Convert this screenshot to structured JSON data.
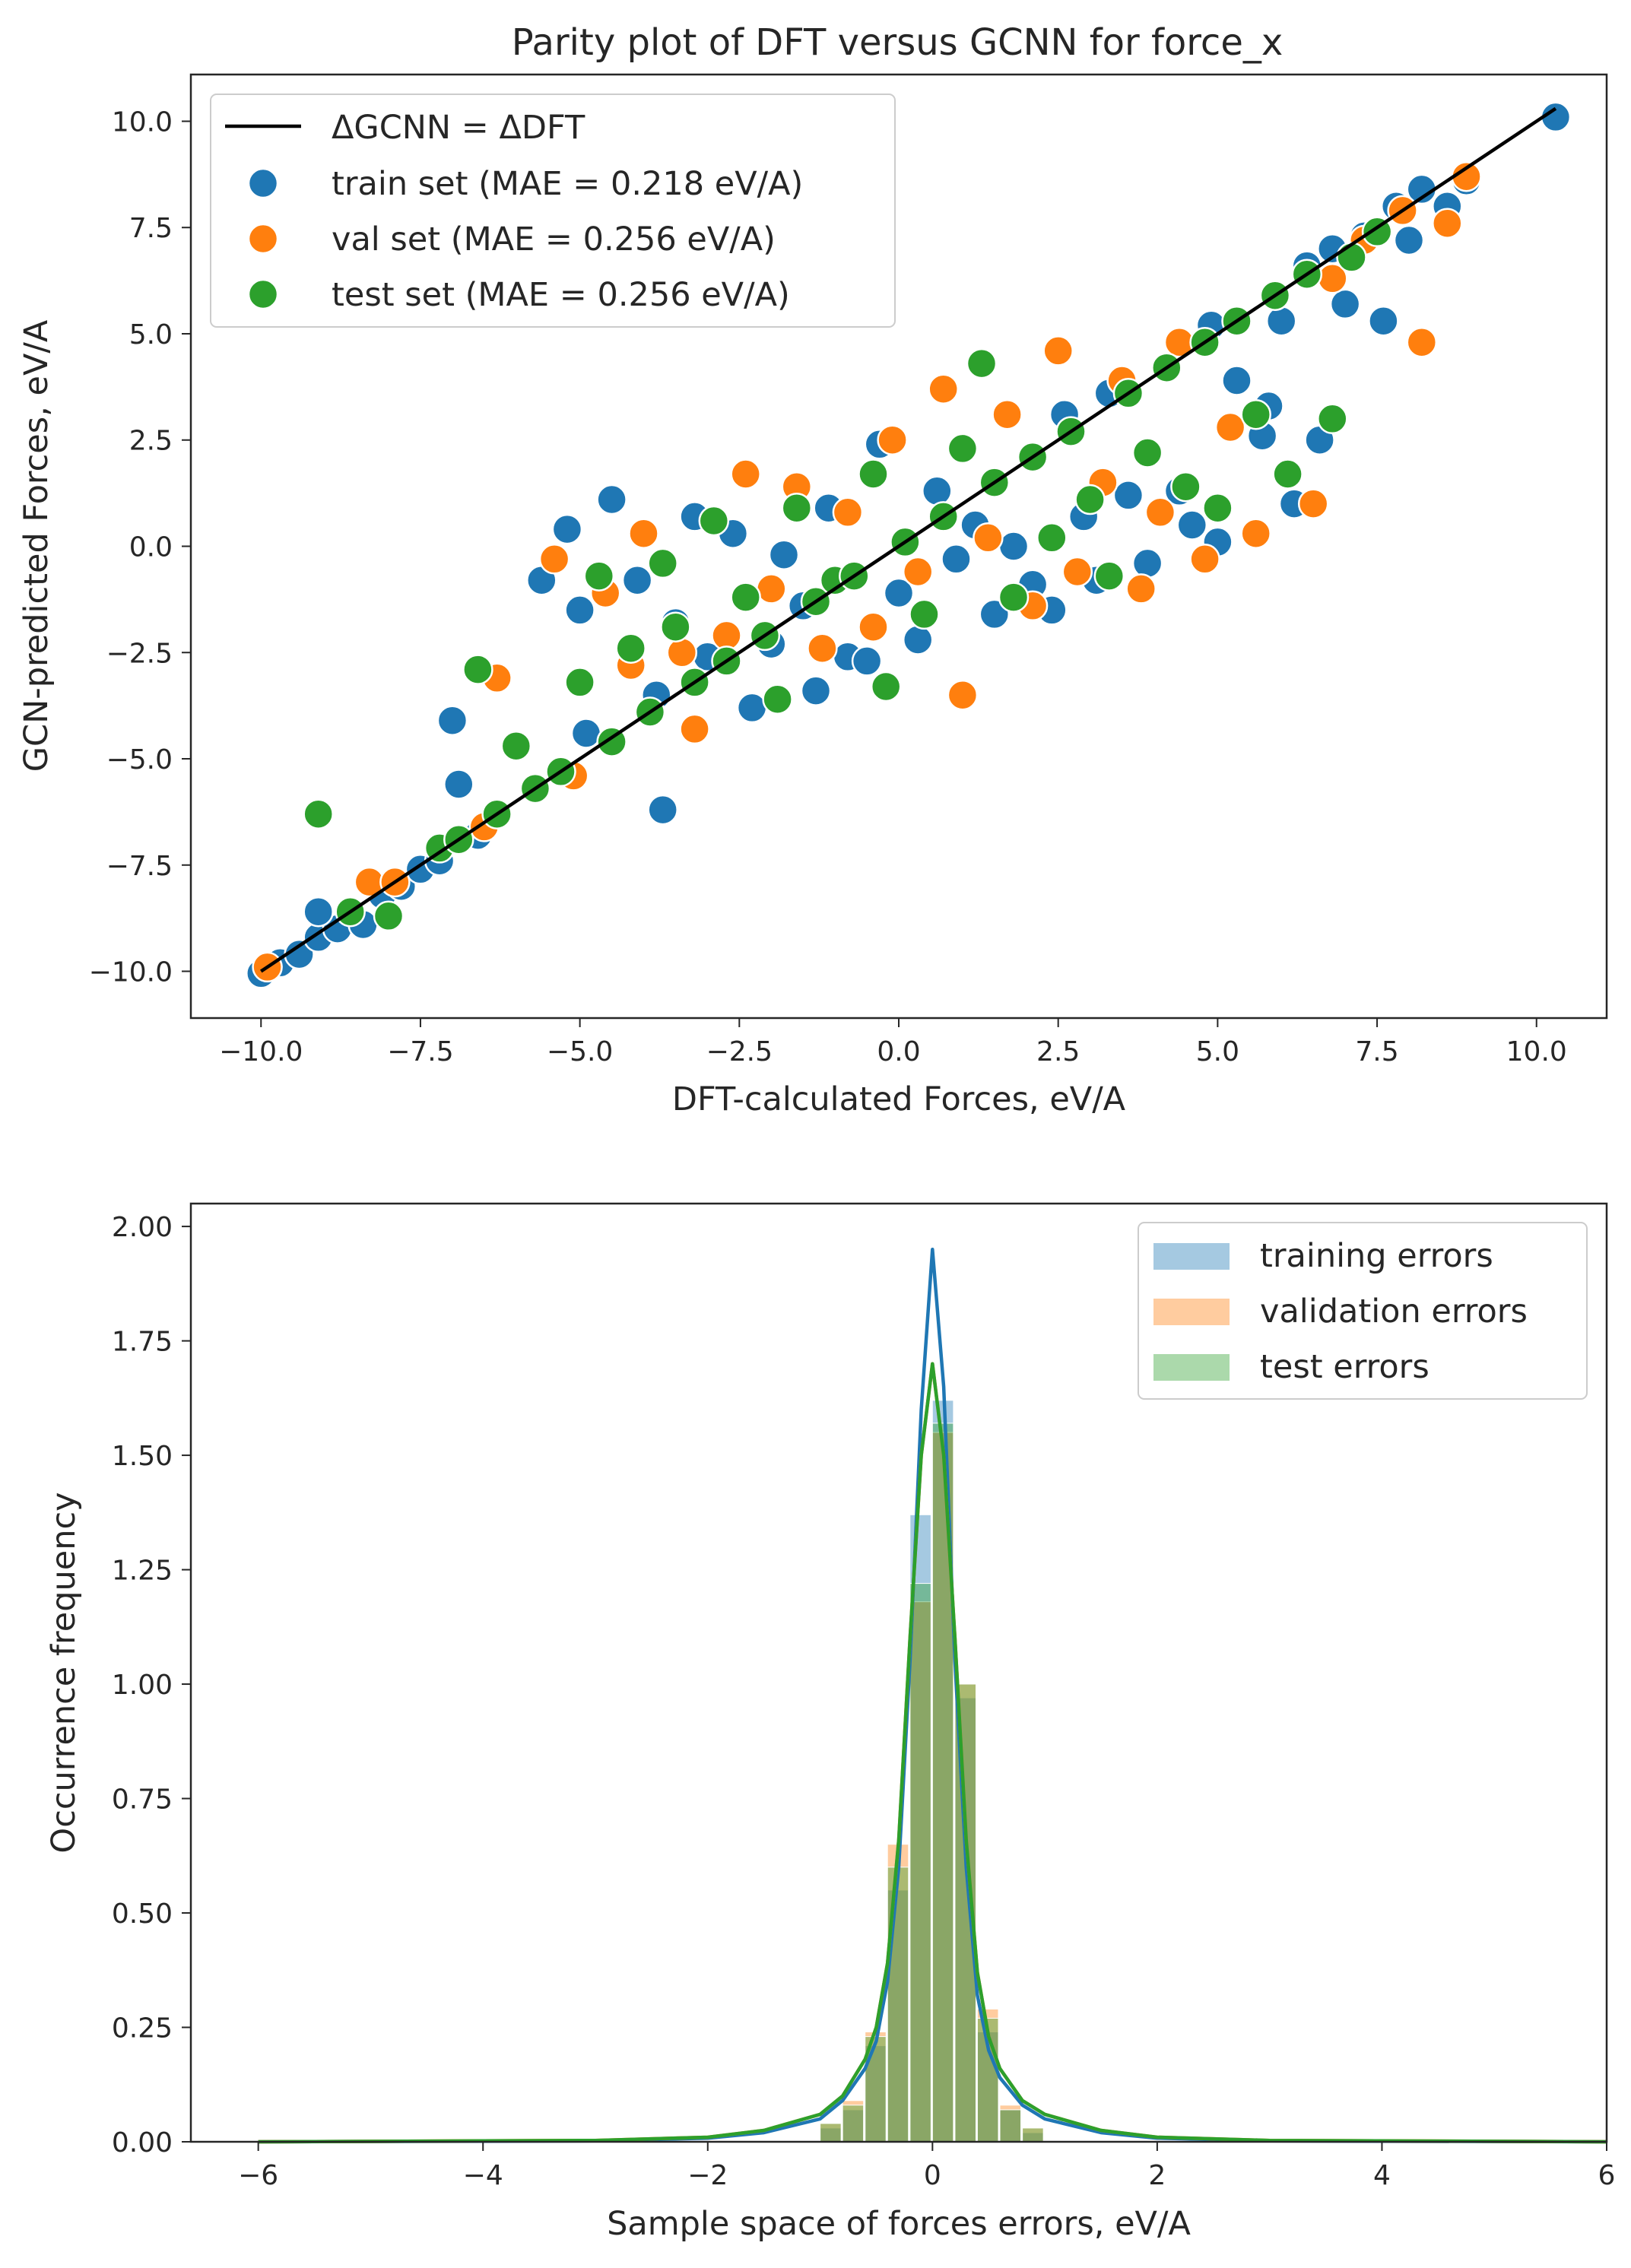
{
  "chart_data": [
    {
      "type": "scatter",
      "title": "Parity plot of DFT versus GCNN for force_x",
      "xlabel": "DFT-calculated Forces, eV/A",
      "ylabel": "GCN-predicted Forces, eV/A",
      "xlim": [
        -11.1,
        11.1
      ],
      "ylim": [
        -11.1,
        11.1
      ],
      "xticks": [
        "−10.0",
        "−7.5",
        "−5.0",
        "−2.5",
        "0.0",
        "2.5",
        "5.0",
        "7.5",
        "10.0"
      ],
      "yticks": [
        "−10.0",
        "−7.5",
        "−5.0",
        "−2.5",
        "0.0",
        "2.5",
        "5.0",
        "7.5",
        "10.0"
      ],
      "xtick_values": [
        -10,
        -7.5,
        -5,
        -2.5,
        0,
        2.5,
        5,
        7.5,
        10
      ],
      "ytick_values": [
        -10,
        -7.5,
        -5,
        -2.5,
        0,
        2.5,
        5,
        7.5,
        10
      ],
      "grid": false,
      "legend_position": "upper-left",
      "reference_line": {
        "name": "ΔGCNN = ΔDFT",
        "color": "#000000",
        "x": [
          -10,
          10.3
        ],
        "y": [
          -10,
          10.3
        ]
      },
      "series": [
        {
          "name": "train set (MAE = 0.218 eV/A)",
          "color": "#1f77b4",
          "points": [
            [
              -10,
              -10.05
            ],
            [
              -9.7,
              -9.8
            ],
            [
              -9.4,
              -9.6
            ],
            [
              -9.1,
              -9.2
            ],
            [
              -8.8,
              -9.0
            ],
            [
              -9.1,
              -8.6
            ],
            [
              -8.4,
              -8.9
            ],
            [
              -8.1,
              -8.2
            ],
            [
              -7.8,
              -8.0
            ],
            [
              -7.5,
              -7.6
            ],
            [
              -7.2,
              -7.4
            ],
            [
              -7.0,
              -4.1
            ],
            [
              -6.9,
              -5.6
            ],
            [
              -6.6,
              -6.8
            ],
            [
              -5.6,
              -0.8
            ],
            [
              -5.2,
              0.4
            ],
            [
              -5.0,
              -1.5
            ],
            [
              -4.9,
              -4.4
            ],
            [
              -4.5,
              1.1
            ],
            [
              -4.1,
              -0.8
            ],
            [
              -3.7,
              -6.2
            ],
            [
              -3.8,
              -3.5
            ],
            [
              -3.5,
              -1.8
            ],
            [
              -3.2,
              0.7
            ],
            [
              -3.0,
              -2.6
            ],
            [
              -2.6,
              0.3
            ],
            [
              -2.3,
              -3.8
            ],
            [
              -2.0,
              -2.3
            ],
            [
              -1.8,
              -0.2
            ],
            [
              -1.5,
              -1.4
            ],
            [
              -1.3,
              -3.4
            ],
            [
              -1.1,
              0.9
            ],
            [
              -0.8,
              -2.6
            ],
            [
              -0.5,
              -2.7
            ],
            [
              -0.3,
              2.4
            ],
            [
              0.0,
              -1.1
            ],
            [
              0.3,
              -2.2
            ],
            [
              0.6,
              1.3
            ],
            [
              0.9,
              -0.3
            ],
            [
              1.2,
              0.5
            ],
            [
              1.5,
              -1.6
            ],
            [
              1.8,
              0.0
            ],
            [
              2.1,
              -0.9
            ],
            [
              2.4,
              -1.5
            ],
            [
              2.6,
              3.1
            ],
            [
              2.9,
              0.7
            ],
            [
              3.1,
              -0.8
            ],
            [
              3.3,
              3.6
            ],
            [
              3.6,
              1.2
            ],
            [
              3.9,
              -0.4
            ],
            [
              4.2,
              4.2
            ],
            [
              4.4,
              1.3
            ],
            [
              4.6,
              0.5
            ],
            [
              4.9,
              5.2
            ],
            [
              5.0,
              0.1
            ],
            [
              5.3,
              3.9
            ],
            [
              5.7,
              2.6
            ],
            [
              5.8,
              3.3
            ],
            [
              6.0,
              5.3
            ],
            [
              6.2,
              1.0
            ],
            [
              6.4,
              6.6
            ],
            [
              6.6,
              2.5
            ],
            [
              6.8,
              7.0
            ],
            [
              7.0,
              5.7
            ],
            [
              7.3,
              7.3
            ],
            [
              7.6,
              5.3
            ],
            [
              7.8,
              8.0
            ],
            [
              8.0,
              7.2
            ],
            [
              8.2,
              8.4
            ],
            [
              8.6,
              8.0
            ],
            [
              8.9,
              8.6
            ],
            [
              10.3,
              10.1
            ]
          ]
        },
        {
          "name": "val set (MAE = 0.256 eV/A)",
          "color": "#ff7f0e",
          "points": [
            [
              -9.9,
              -9.9
            ],
            [
              -8.3,
              -7.9
            ],
            [
              -7.9,
              -7.9
            ],
            [
              -6.5,
              -6.6
            ],
            [
              -6.3,
              -3.1
            ],
            [
              -5.4,
              -0.3
            ],
            [
              -5.1,
              -5.4
            ],
            [
              -4.6,
              -1.1
            ],
            [
              -4.2,
              -2.8
            ],
            [
              -4.0,
              0.3
            ],
            [
              -3.4,
              -2.5
            ],
            [
              -3.2,
              -4.3
            ],
            [
              -2.7,
              -2.1
            ],
            [
              -2.4,
              1.7
            ],
            [
              -2.0,
              -1.0
            ],
            [
              -1.6,
              1.4
            ],
            [
              -1.2,
              -2.4
            ],
            [
              -0.8,
              0.8
            ],
            [
              -0.4,
              -1.9
            ],
            [
              -0.1,
              2.5
            ],
            [
              0.3,
              -0.6
            ],
            [
              0.7,
              3.7
            ],
            [
              1.0,
              -3.5
            ],
            [
              1.4,
              0.2
            ],
            [
              1.7,
              3.1
            ],
            [
              2.1,
              -1.4
            ],
            [
              2.5,
              4.6
            ],
            [
              2.8,
              -0.6
            ],
            [
              3.2,
              1.5
            ],
            [
              3.5,
              3.9
            ],
            [
              3.8,
              -1.0
            ],
            [
              4.1,
              0.8
            ],
            [
              4.4,
              4.8
            ],
            [
              4.8,
              -0.3
            ],
            [
              5.2,
              2.8
            ],
            [
              5.6,
              0.3
            ],
            [
              5.9,
              5.9
            ],
            [
              6.5,
              1.0
            ],
            [
              6.8,
              6.3
            ],
            [
              7.3,
              7.2
            ],
            [
              7.9,
              7.9
            ],
            [
              8.2,
              4.8
            ],
            [
              8.6,
              7.6
            ],
            [
              8.9,
              8.7
            ]
          ]
        },
        {
          "name": "test set (MAE = 0.256 eV/A)",
          "color": "#2ca02c",
          "points": [
            [
              -9.1,
              -6.3
            ],
            [
              -8.6,
              -8.6
            ],
            [
              -8.0,
              -8.7
            ],
            [
              -7.2,
              -7.1
            ],
            [
              -6.9,
              -6.9
            ],
            [
              -6.6,
              -2.9
            ],
            [
              -6.3,
              -6.3
            ],
            [
              -6.0,
              -4.7
            ],
            [
              -5.7,
              -5.7
            ],
            [
              -5.3,
              -5.3
            ],
            [
              -5.0,
              -3.2
            ],
            [
              -4.7,
              -0.7
            ],
            [
              -4.5,
              -4.6
            ],
            [
              -4.2,
              -2.4
            ],
            [
              -3.9,
              -3.9
            ],
            [
              -3.7,
              -0.4
            ],
            [
              -3.5,
              -1.9
            ],
            [
              -3.2,
              -3.2
            ],
            [
              -2.9,
              0.6
            ],
            [
              -2.7,
              -2.7
            ],
            [
              -2.4,
              -1.2
            ],
            [
              -2.1,
              -2.1
            ],
            [
              -1.9,
              -3.6
            ],
            [
              -1.6,
              0.9
            ],
            [
              -1.3,
              -1.3
            ],
            [
              -1.0,
              -0.8
            ],
            [
              -0.7,
              -0.7
            ],
            [
              -0.4,
              1.7
            ],
            [
              -0.2,
              -3.3
            ],
            [
              0.1,
              0.1
            ],
            [
              0.4,
              -1.6
            ],
            [
              0.7,
              0.7
            ],
            [
              1.0,
              2.3
            ],
            [
              1.3,
              4.3
            ],
            [
              1.5,
              1.5
            ],
            [
              1.8,
              -1.2
            ],
            [
              2.1,
              2.1
            ],
            [
              2.4,
              0.2
            ],
            [
              2.7,
              2.7
            ],
            [
              3.0,
              1.1
            ],
            [
              3.3,
              -0.7
            ],
            [
              3.6,
              3.6
            ],
            [
              3.9,
              2.2
            ],
            [
              4.2,
              4.2
            ],
            [
              4.5,
              1.4
            ],
            [
              4.8,
              4.8
            ],
            [
              5.0,
              0.9
            ],
            [
              5.3,
              5.3
            ],
            [
              5.6,
              3.1
            ],
            [
              5.9,
              5.9
            ],
            [
              6.1,
              1.7
            ],
            [
              6.4,
              6.4
            ],
            [
              6.8,
              3.0
            ],
            [
              7.1,
              6.8
            ],
            [
              7.5,
              7.4
            ]
          ]
        }
      ]
    },
    {
      "type": "histogram",
      "title": "",
      "xlabel": "Sample space of forces errors, eV/A",
      "ylabel": "Occurrence frequency",
      "xlim": [
        -6.6,
        6.0
      ],
      "ylim": [
        0.0,
        2.05
      ],
      "xticks": [
        "−6",
        "−4",
        "−2",
        "0",
        "2",
        "4",
        "6"
      ],
      "yticks": [
        "0.00",
        "0.25",
        "0.50",
        "0.75",
        "1.00",
        "1.25",
        "1.50",
        "1.75",
        "2.00"
      ],
      "xtick_values": [
        -6,
        -4,
        -2,
        0,
        2,
        4,
        6
      ],
      "ytick_values": [
        0,
        0.25,
        0.5,
        0.75,
        1.0,
        1.25,
        1.5,
        1.75,
        2.0
      ],
      "grid": false,
      "legend_position": "upper-right",
      "series": [
        {
          "name": "training errors",
          "color": "#1f77b4",
          "bin_edges": [
            -1.0,
            -0.8,
            -0.6,
            -0.4,
            -0.2,
            0.0,
            0.2,
            0.4,
            0.6,
            0.8,
            1.0
          ],
          "density": [
            0.03,
            0.07,
            0.21,
            0.55,
            1.37,
            1.62,
            0.97,
            0.24,
            0.07,
            0.02
          ],
          "kde": {
            "x": [
              -6,
              -3,
              -2,
              -1.5,
              -1.0,
              -0.8,
              -0.6,
              -0.5,
              -0.4,
              -0.3,
              -0.2,
              -0.1,
              0.0,
              0.1,
              0.2,
              0.3,
              0.4,
              0.5,
              0.6,
              0.8,
              1.0,
              1.5,
              2,
              3,
              6
            ],
            "y": [
              0,
              0.002,
              0.008,
              0.02,
              0.05,
              0.09,
              0.16,
              0.22,
              0.35,
              0.6,
              1.05,
              1.6,
              1.95,
              1.65,
              1.05,
              0.6,
              0.32,
              0.2,
              0.14,
              0.08,
              0.05,
              0.02,
              0.008,
              0.002,
              0
            ]
          }
        },
        {
          "name": "validation errors",
          "color": "#ff7f0e",
          "bin_edges": [
            -1.0,
            -0.8,
            -0.6,
            -0.4,
            -0.2,
            0.0,
            0.2,
            0.4,
            0.6,
            0.8,
            1.0
          ],
          "density": [
            0.04,
            0.09,
            0.24,
            0.65,
            1.18,
            1.55,
            1.0,
            0.29,
            0.08,
            0.03
          ],
          "kde": {
            "x": [
              -6,
              -3,
              -2,
              -1.5,
              -1.0,
              -0.8,
              -0.6,
              -0.5,
              -0.4,
              -0.3,
              -0.2,
              -0.1,
              0.0,
              0.1,
              0.2,
              0.3,
              0.4,
              0.5,
              0.6,
              0.8,
              1.0,
              1.5,
              2,
              3,
              6
            ],
            "y": [
              0,
              0.003,
              0.01,
              0.025,
              0.06,
              0.1,
              0.18,
              0.25,
              0.39,
              0.66,
              1.1,
              1.5,
              1.7,
              1.5,
              1.1,
              0.66,
              0.37,
              0.23,
              0.16,
              0.09,
              0.06,
              0.025,
              0.01,
              0.003,
              0
            ]
          }
        },
        {
          "name": "test errors",
          "color": "#2ca02c",
          "bin_edges": [
            -1.0,
            -0.8,
            -0.6,
            -0.4,
            -0.2,
            0.0,
            0.2,
            0.4,
            0.6,
            0.8,
            1.0
          ],
          "density": [
            0.04,
            0.08,
            0.23,
            0.6,
            1.22,
            1.57,
            1.0,
            0.27,
            0.07,
            0.03
          ],
          "kde": {
            "x": [
              -6,
              -3,
              -2,
              -1.5,
              -1.0,
              -0.8,
              -0.6,
              -0.5,
              -0.4,
              -0.3,
              -0.2,
              -0.1,
              0.0,
              0.1,
              0.2,
              0.3,
              0.4,
              0.5,
              0.6,
              0.8,
              1.0,
              1.5,
              2,
              3,
              6
            ],
            "y": [
              0,
              0.003,
              0.01,
              0.025,
              0.06,
              0.1,
              0.18,
              0.25,
              0.39,
              0.66,
              1.1,
              1.5,
              1.7,
              1.5,
              1.1,
              0.66,
              0.37,
              0.23,
              0.16,
              0.09,
              0.06,
              0.025,
              0.01,
              0.003,
              0
            ]
          }
        }
      ]
    }
  ]
}
